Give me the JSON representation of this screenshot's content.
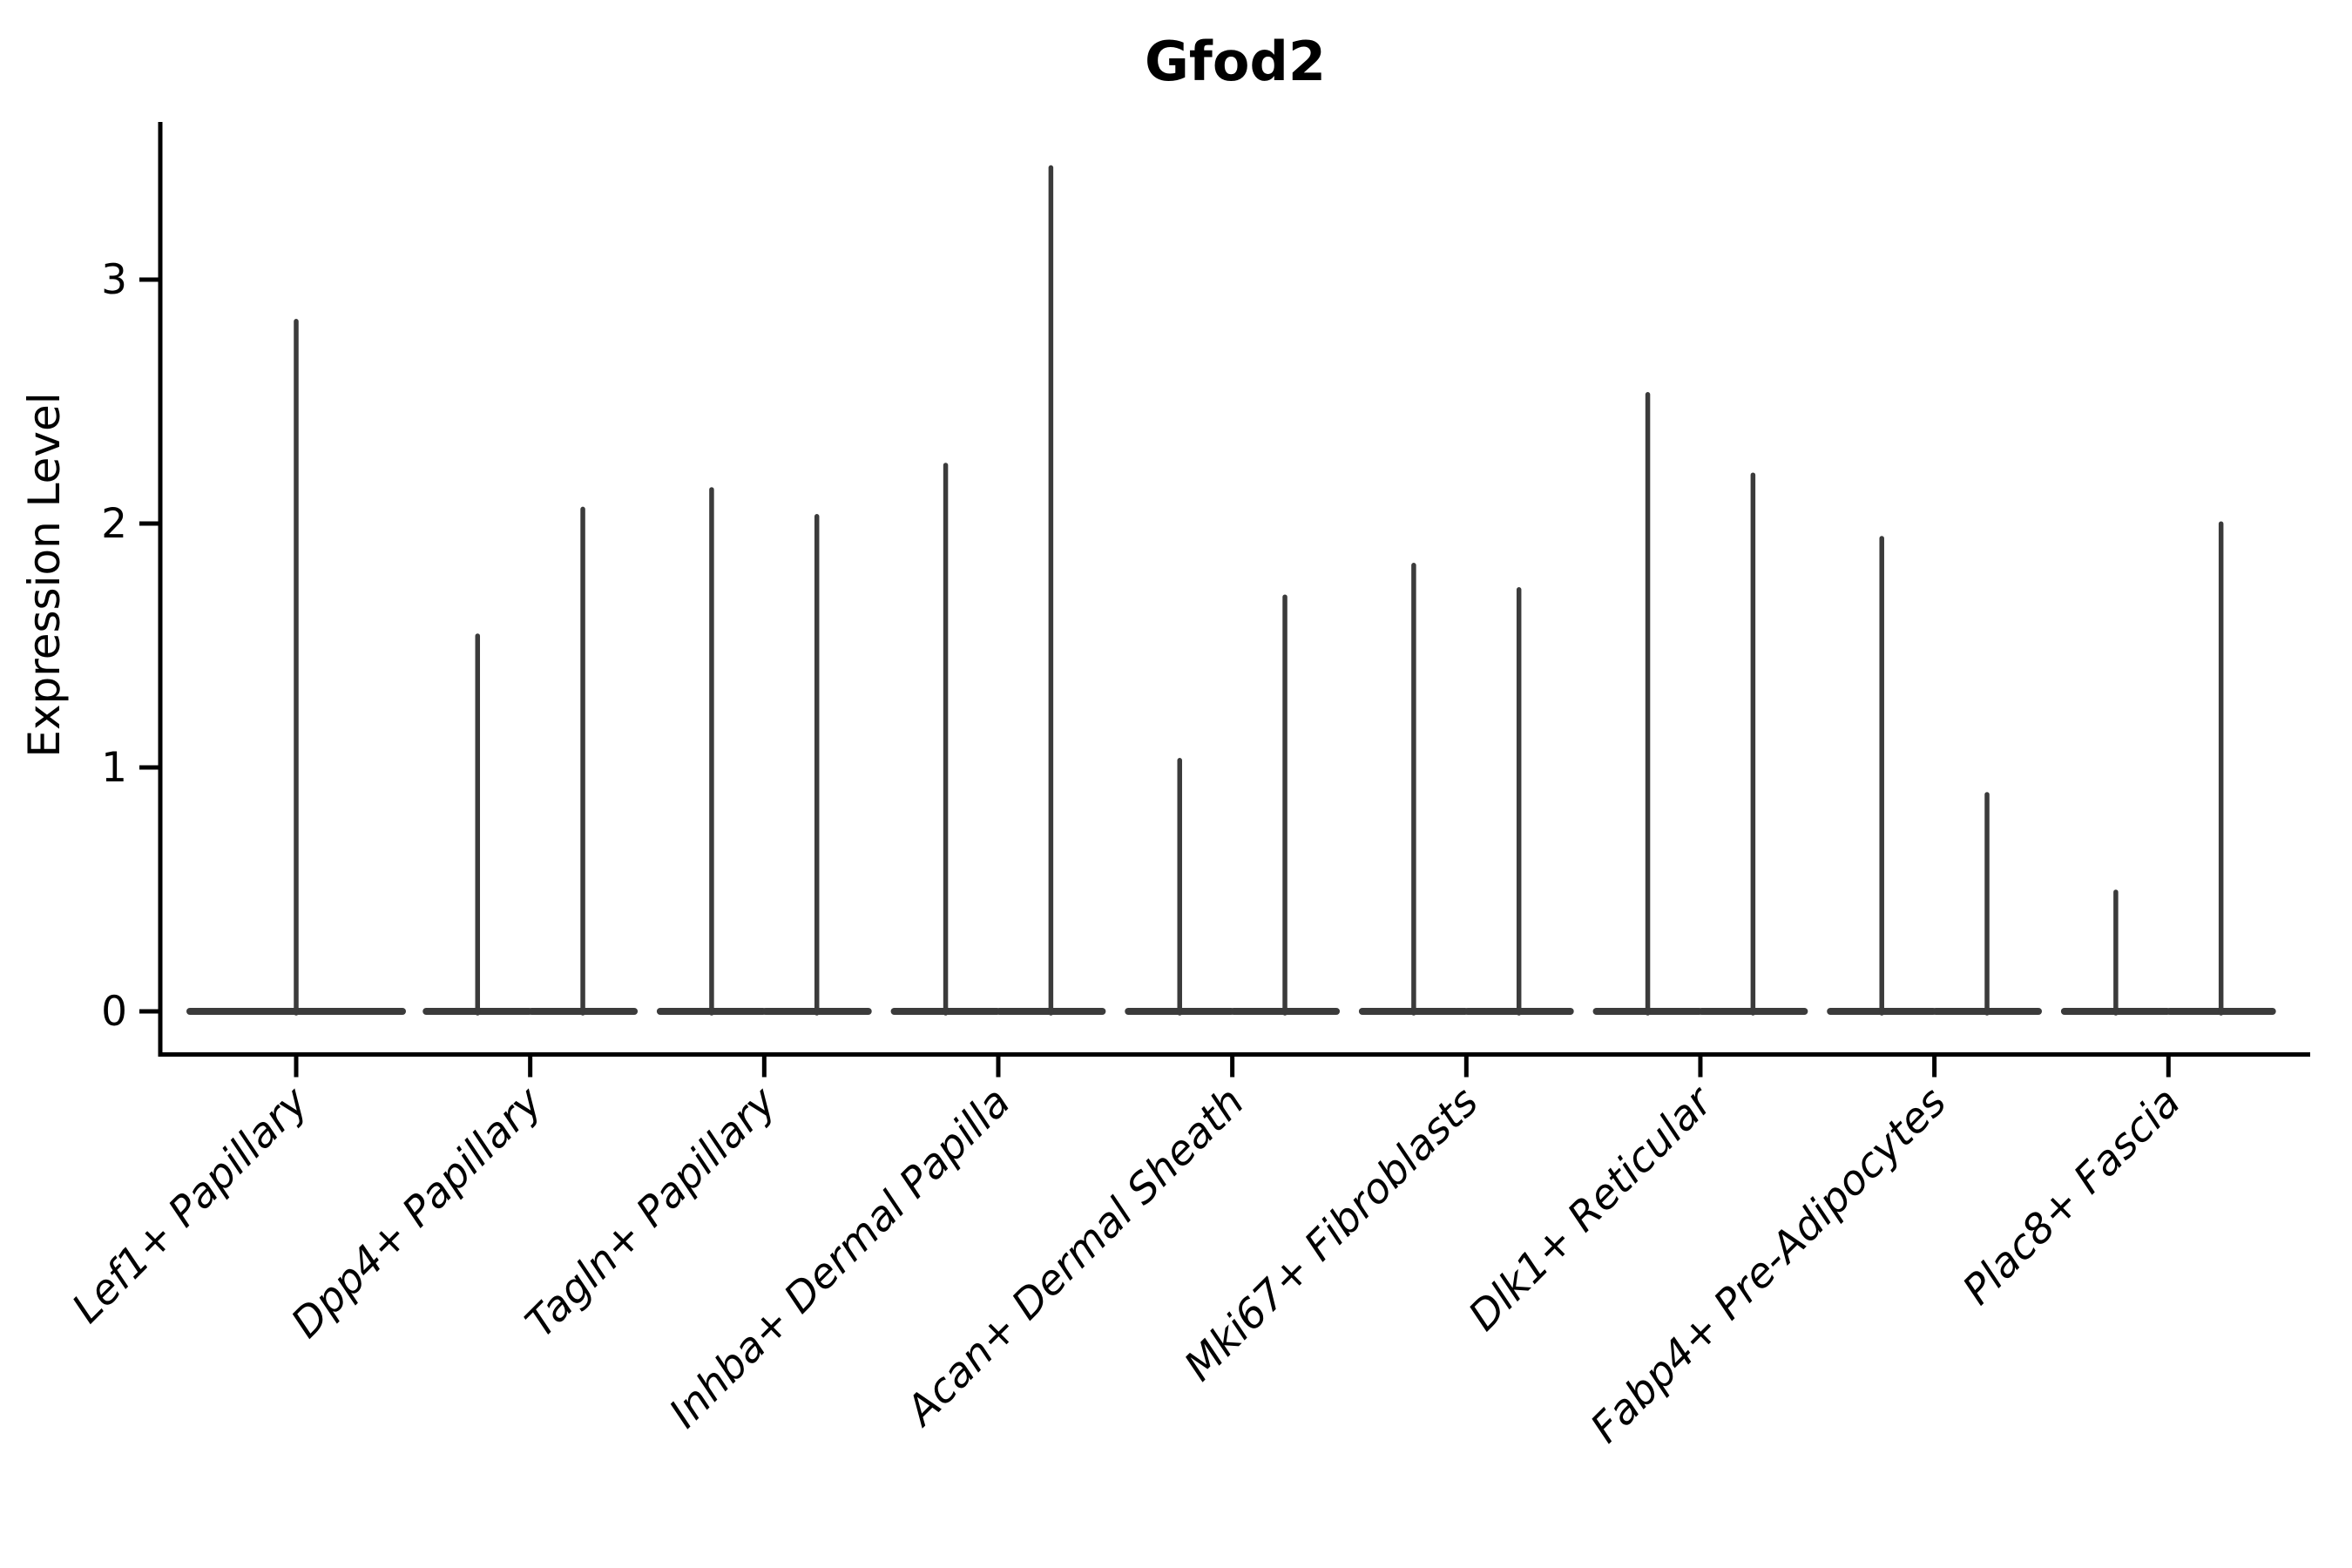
{
  "chart_data": {
    "type": "violin",
    "title": "Gfod2",
    "xlabel": "",
    "ylabel": "Expression Level",
    "categories": [
      "Lef1+ Papillary",
      "Dpp4+ Papillary",
      "Tagln+ Papillary",
      "Inhba+ Dermal Papilla",
      "Acan+ Dermal Sheath",
      "Mki67+ Fibroblasts",
      "Dlk1+ Reticular",
      "Fabp4+ Pre-Adipocytes",
      "Plac8+ Fascia"
    ],
    "violins": [
      {
        "category": "Lef1+ Papillary",
        "max_values": [
          2.84
        ]
      },
      {
        "category": "Dpp4+ Papillary",
        "max_values": [
          1.55,
          2.07
        ]
      },
      {
        "category": "Tagln+ Papillary",
        "max_values": [
          2.15,
          2.04
        ]
      },
      {
        "category": "Inhba+ Dermal Papilla",
        "max_values": [
          2.25,
          3.47
        ]
      },
      {
        "category": "Acan+ Dermal Sheath",
        "max_values": [
          1.04,
          1.71
        ]
      },
      {
        "category": "Mki67+ Fibroblasts",
        "max_values": [
          1.84,
          1.74
        ]
      },
      {
        "category": "Dlk1+ Reticular",
        "max_values": [
          2.54,
          2.21
        ]
      },
      {
        "category": "Fabp4+ Pre-Adipocytes",
        "max_values": [
          1.95,
          0.9
        ]
      },
      {
        "category": "Plac8+ Fascia",
        "max_values": [
          0.5,
          2.01
        ]
      }
    ],
    "violin_shape": "flat wide base at 0 with a thin vertical spike up to max value",
    "y_ticks": [
      0,
      1,
      2,
      3
    ],
    "ylim": [
      -0.175,
      3.65
    ],
    "grid": false,
    "legend": "none",
    "colors": {
      "violin": "#3b3b3b",
      "axis": "#000000",
      "text": "#000000",
      "background": "#ffffff"
    }
  }
}
